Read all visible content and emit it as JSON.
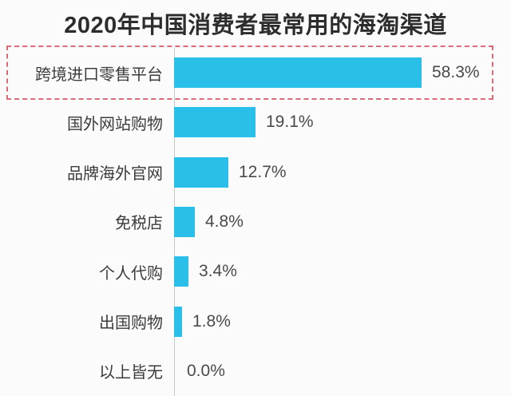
{
  "chart_data": {
    "type": "bar",
    "orientation": "horizontal",
    "title": "2020年中国消费者最常用的海淘渠道",
    "categories": [
      "跨境进口零售平台",
      "国外网站购物",
      "品牌海外官网",
      "免税店",
      "个人代购",
      "出国购物",
      "以上皆无"
    ],
    "values": [
      58.3,
      19.1,
      12.7,
      4.8,
      3.4,
      1.8,
      0.0
    ],
    "value_labels": [
      "58.3%",
      "19.1%",
      "12.7%",
      "4.8%",
      "3.4%",
      "1.8%",
      "0.0%"
    ],
    "highlighted_index": 0,
    "xlim": [
      0,
      60
    ],
    "grid": false,
    "legend": false,
    "bar_color": "#29bfe8",
    "highlight_border_color": "#d96b78",
    "axis_line_color": "#c9c9c9",
    "background_color": "#fcfbfb",
    "title_color": "#2d2d2d",
    "label_color": "#3c3c3c",
    "value_color": "#4a4a4a"
  }
}
